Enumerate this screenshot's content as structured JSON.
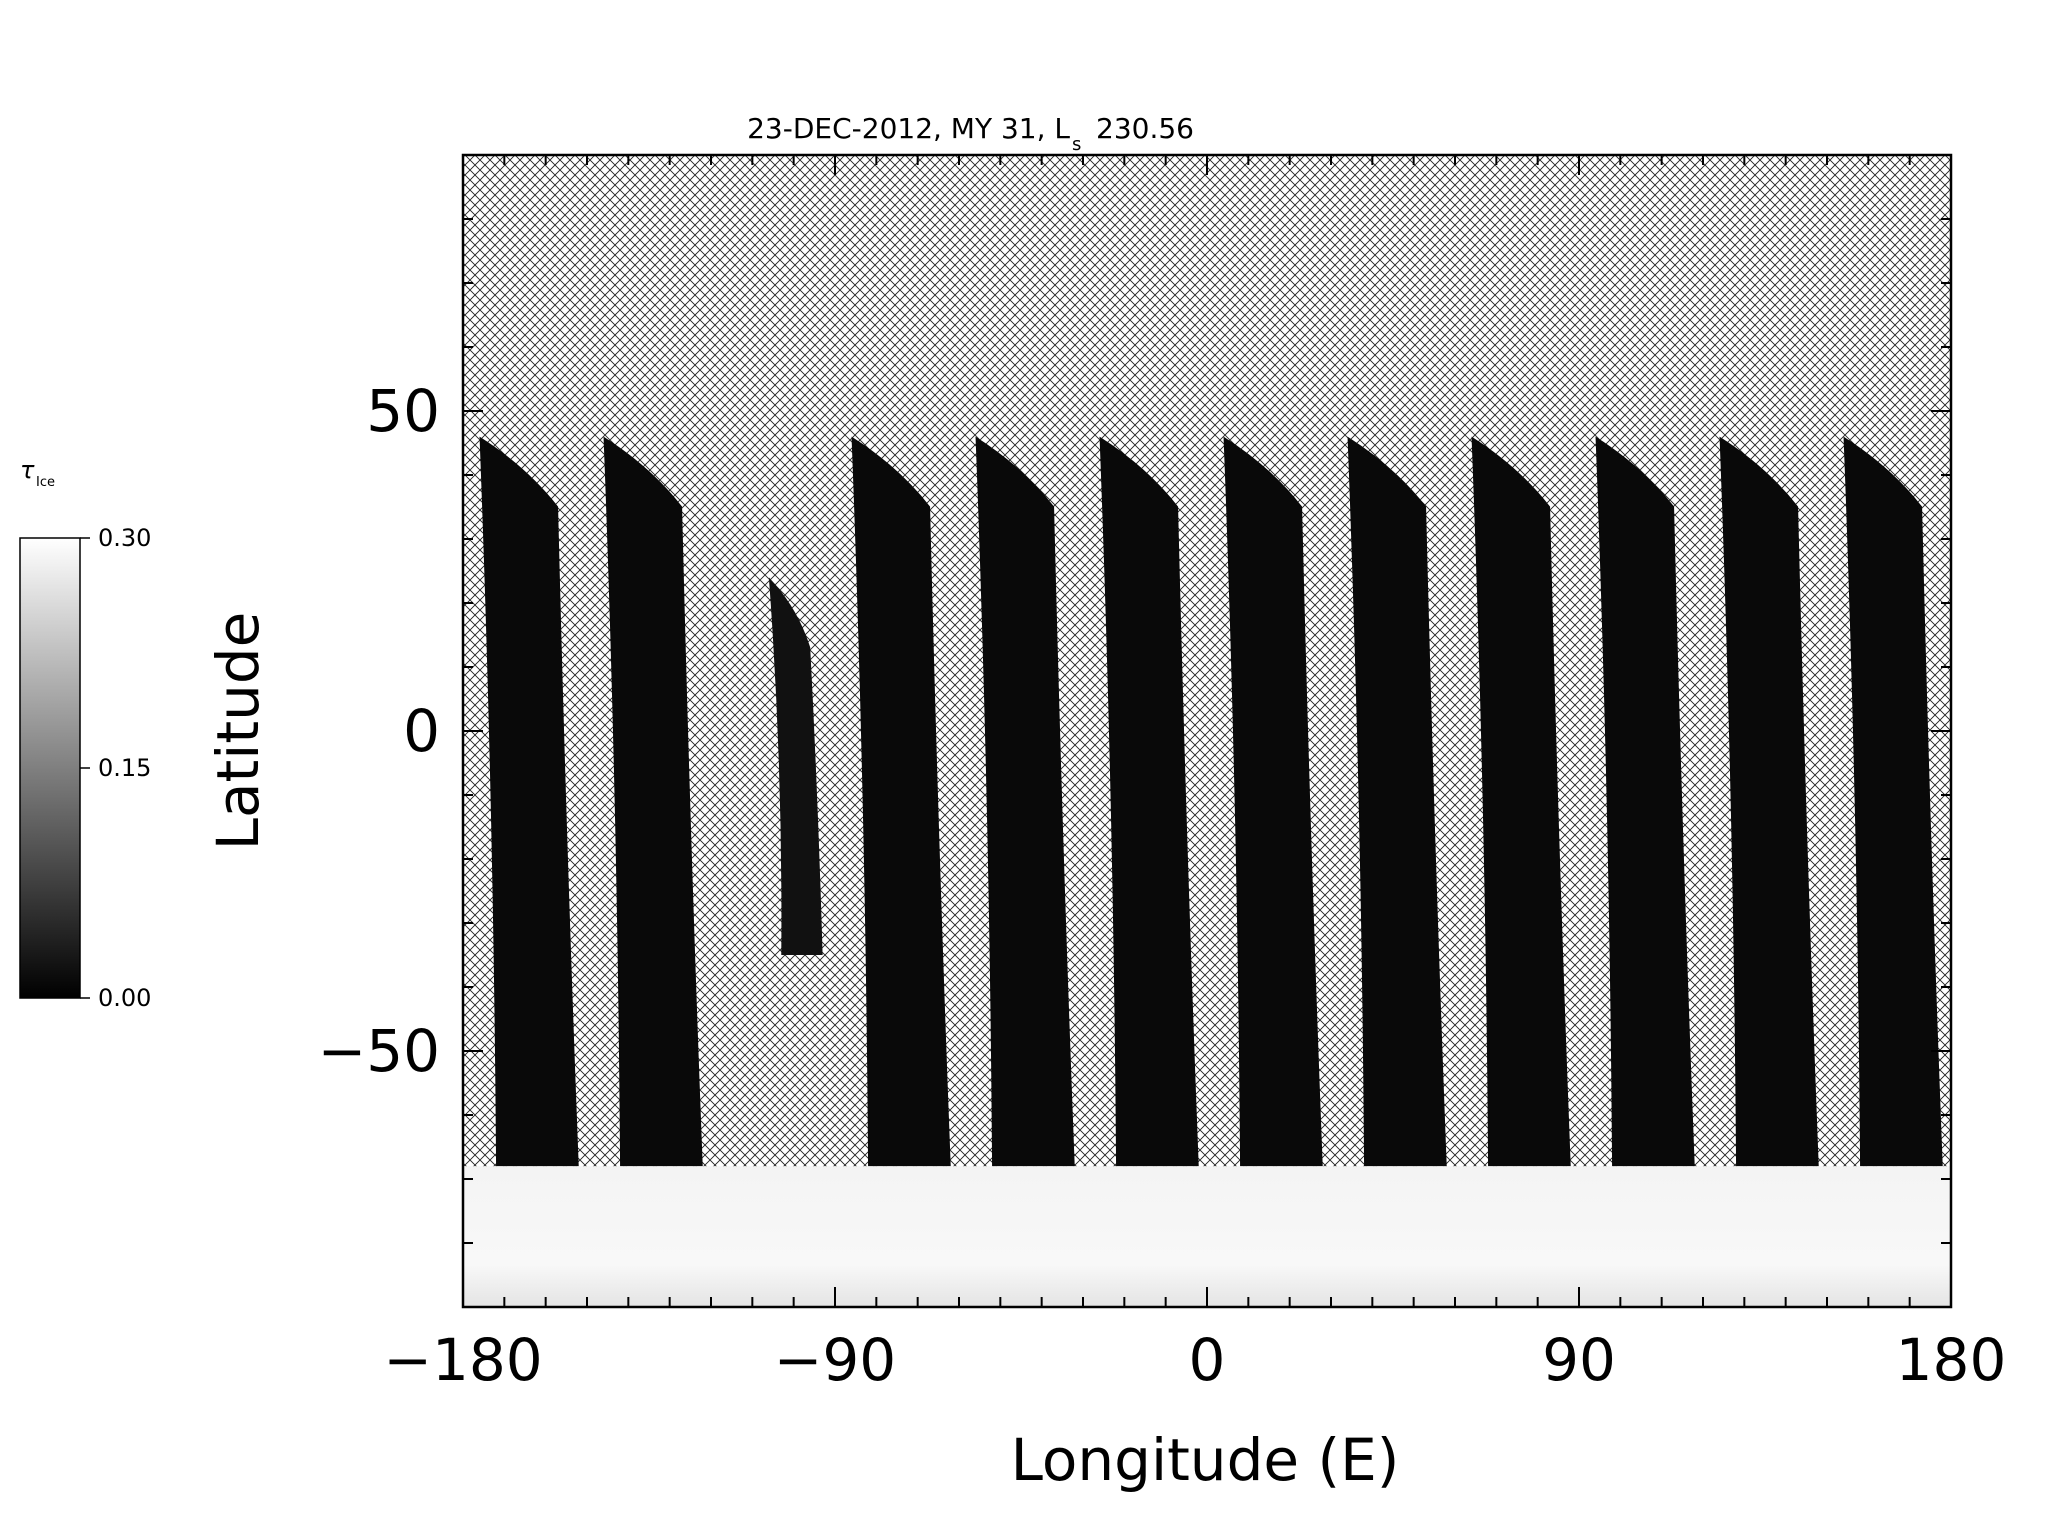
{
  "chart_data": {
    "type": "heatmap",
    "title": "23-DEC-2012, MY 31,  L",
    "title_subscript": "s",
    "title_value": "230.56",
    "xlabel": "Longitude (E)",
    "ylabel": "Latitude",
    "xlim": [
      -180,
      180
    ],
    "ylim": [
      -90,
      90
    ],
    "x_ticks": [
      {
        "value": -180,
        "label": "−180"
      },
      {
        "value": -90,
        "label": "−90"
      },
      {
        "value": 0,
        "label": "0"
      },
      {
        "value": 90,
        "label": "90"
      },
      {
        "value": 180,
        "label": "180"
      }
    ],
    "y_ticks": [
      {
        "value": -50,
        "label": "−50"
      },
      {
        "value": 0,
        "label": "0"
      },
      {
        "value": 50,
        "label": "50"
      }
    ],
    "x_minor_step": 10,
    "y_minor_step": 10,
    "missing_data_pattern": "crosshatch",
    "colorbar": {
      "label": "τ",
      "label_subscript": "Ice",
      "range": [
        0.0,
        0.3
      ],
      "ticks": [
        {
          "value": 0.0,
          "label": "0.00"
        },
        {
          "value": 0.15,
          "label": "0.15"
        },
        {
          "value": 0.3,
          "label": "0.30"
        }
      ],
      "colormap": "grayscale",
      "low_color": "#000000",
      "high_color": "#ffffff"
    },
    "swaths_note_values": "tau_ice near 0.00 over observed swaths; near 0.30 south of about -68 latitude",
    "swaths": [
      {
        "lon_top_left": -176,
        "lon_top_right": -157,
        "lat_top": 46,
        "lon_bottom_left": -172,
        "lon_bottom_right": -152,
        "lat_bottom": -68,
        "tau": 0.01
      },
      {
        "lon_top_left": -146,
        "lon_top_right": -127,
        "lat_top": 46,
        "lon_bottom_left": -142,
        "lon_bottom_right": -122,
        "lat_bottom": -68,
        "tau": 0.01
      },
      {
        "lon_top_left": -106,
        "lon_top_right": -96,
        "lat_top": 24,
        "lon_bottom_left": -103,
        "lon_bottom_right": -93,
        "lat_bottom": -35,
        "tau": 0.02
      },
      {
        "lon_top_left": -86,
        "lon_top_right": -67,
        "lat_top": 46,
        "lon_bottom_left": -82,
        "lon_bottom_right": -62,
        "lat_bottom": -68,
        "tau": 0.01
      },
      {
        "lon_top_left": -56,
        "lon_top_right": -37,
        "lat_top": 46,
        "lon_bottom_left": -52,
        "lon_bottom_right": -32,
        "lat_bottom": -68,
        "tau": 0.01
      },
      {
        "lon_top_left": -26,
        "lon_top_right": -7,
        "lat_top": 46,
        "lon_bottom_left": -22,
        "lon_bottom_right": -2,
        "lat_bottom": -68,
        "tau": 0.01
      },
      {
        "lon_top_left": 4,
        "lon_top_right": 23,
        "lat_top": 46,
        "lon_bottom_left": 8,
        "lon_bottom_right": 28,
        "lat_bottom": -68,
        "tau": 0.01
      },
      {
        "lon_top_left": 34,
        "lon_top_right": 53,
        "lat_top": 46,
        "lon_bottom_left": 38,
        "lon_bottom_right": 58,
        "lat_bottom": -68,
        "tau": 0.01
      },
      {
        "lon_top_left": 64,
        "lon_top_right": 83,
        "lat_top": 46,
        "lon_bottom_left": 68,
        "lon_bottom_right": 88,
        "lat_bottom": -68,
        "tau": 0.01
      },
      {
        "lon_top_left": 94,
        "lon_top_right": 113,
        "lat_top": 46,
        "lon_bottom_left": 98,
        "lon_bottom_right": 118,
        "lat_bottom": -68,
        "tau": 0.01
      },
      {
        "lon_top_left": 124,
        "lon_top_right": 143,
        "lat_top": 46,
        "lon_bottom_left": 128,
        "lon_bottom_right": 148,
        "lat_bottom": -68,
        "tau": 0.01
      },
      {
        "lon_top_left": 154,
        "lon_top_right": 173,
        "lat_top": 46,
        "lon_bottom_left": 158,
        "lon_bottom_right": 178,
        "lat_bottom": -68,
        "tau": 0.01
      }
    ],
    "polar_region": {
      "lat_min": -90,
      "lat_max": -68,
      "tau": 0.29
    }
  }
}
